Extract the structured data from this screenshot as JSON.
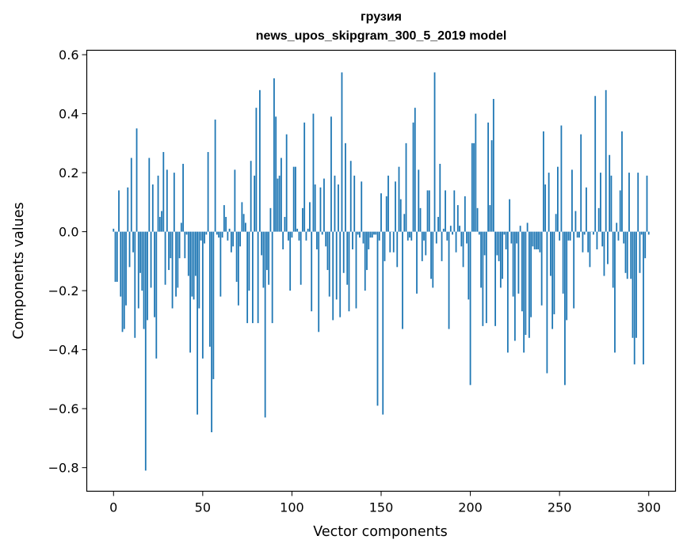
{
  "chart_data": {
    "type": "bar",
    "title": "грузия",
    "subtitle": "news_upos_skipgram_300_5_2019 model",
    "xlabel": "Vector components",
    "ylabel": "Components values",
    "xlim": [
      -15,
      315
    ],
    "ylim": [
      -0.88,
      0.615
    ],
    "xticks": [
      0,
      50,
      100,
      150,
      200,
      250,
      300
    ],
    "xtick_labels": [
      "0",
      "50",
      "100",
      "150",
      "200",
      "250",
      "300"
    ],
    "yticks": [
      -0.8,
      -0.6,
      -0.4,
      -0.2,
      0.0,
      0.2,
      0.4,
      0.6
    ],
    "ytick_labels": [
      "−0.8",
      "−0.6",
      "−0.4",
      "−0.2",
      "0.0",
      "0.2",
      "0.4",
      "0.6"
    ],
    "grid": false,
    "bar_color": "#1f77b4",
    "values": [
      0.01,
      -0.17,
      -0.17,
      0.14,
      -0.22,
      -0.34,
      -0.33,
      -0.25,
      0.15,
      -0.12,
      0.25,
      -0.07,
      -0.36,
      0.35,
      -0.26,
      -0.14,
      -0.2,
      -0.33,
      -0.81,
      -0.3,
      0.25,
      -0.19,
      0.16,
      -0.29,
      -0.43,
      0.19,
      0.05,
      0.07,
      0.27,
      -0.18,
      0.21,
      -0.13,
      -0.09,
      -0.26,
      0.2,
      -0.22,
      -0.19,
      -0.09,
      0.03,
      0.23,
      -0.09,
      -0.01,
      -0.15,
      -0.41,
      -0.22,
      -0.23,
      -0.15,
      -0.62,
      -0.26,
      -0.03,
      -0.43,
      -0.04,
      -0.01,
      0.27,
      -0.39,
      -0.68,
      -0.5,
      0.38,
      -0.01,
      -0.02,
      -0.22,
      -0.02,
      0.09,
      0.05,
      -0.03,
      0.01,
      -0.07,
      -0.05,
      0.21,
      -0.17,
      -0.25,
      -0.05,
      0.1,
      0.06,
      0.03,
      -0.31,
      -0.2,
      0.24,
      -0.31,
      0.19,
      0.42,
      -0.31,
      0.48,
      -0.08,
      -0.19,
      -0.63,
      -0.13,
      -0.18,
      0.08,
      -0.31,
      0.52,
      0.39,
      0.18,
      0.19,
      0.25,
      -0.06,
      0.05,
      0.33,
      -0.03,
      -0.2,
      -0.02,
      0.22,
      0.22,
      0.01,
      -0.03,
      -0.18,
      0.08,
      0.37,
      -0.03,
      0.01,
      0.1,
      -0.27,
      0.4,
      0.16,
      -0.06,
      -0.34,
      0.15,
      -0.01,
      0.18,
      -0.05,
      -0.13,
      -0.22,
      0.39,
      -0.3,
      0.19,
      -0.23,
      0.16,
      -0.29,
      0.54,
      -0.14,
      0.3,
      -0.18,
      -0.27,
      0.24,
      -0.06,
      0.19,
      -0.26,
      -0.01,
      -0.02,
      0.17,
      -0.04,
      -0.2,
      -0.13,
      -0.06,
      -0.02,
      -0.02,
      -0.01,
      -0.01,
      -0.59,
      -0.03,
      0.13,
      -0.62,
      -0.1,
      0.12,
      0.19,
      -0.07,
      0.0,
      -0.07,
      0.17,
      -0.12,
      0.22,
      0.11,
      -0.33,
      0.06,
      0.3,
      -0.03,
      -0.02,
      -0.03,
      0.37,
      0.42,
      -0.21,
      0.21,
      0.08,
      -0.1,
      -0.03,
      -0.08,
      0.14,
      0.14,
      -0.16,
      -0.19,
      0.54,
      -0.04,
      0.05,
      0.23,
      -0.1,
      0.01,
      0.14,
      -0.03,
      -0.33,
      0.02,
      -0.01,
      0.14,
      -0.07,
      0.09,
      0.02,
      -0.05,
      -0.12,
      0.12,
      -0.04,
      -0.23,
      -0.52,
      0.3,
      0.3,
      0.4,
      0.08,
      -0.01,
      -0.19,
      -0.32,
      -0.08,
      -0.31,
      0.37,
      0.09,
      0.31,
      0.45,
      -0.32,
      -0.08,
      -0.1,
      -0.19,
      -0.16,
      -0.01,
      -0.06,
      -0.41,
      0.11,
      -0.04,
      -0.22,
      -0.37,
      -0.04,
      -0.21,
      0.02,
      -0.27,
      -0.41,
      -0.35,
      0.03,
      -0.36,
      -0.29,
      -0.05,
      -0.06,
      -0.06,
      -0.06,
      -0.07,
      -0.25,
      0.34,
      0.16,
      -0.48,
      0.2,
      -0.15,
      -0.33,
      -0.28,
      0.06,
      0.22,
      -0.03,
      0.36,
      -0.21,
      -0.52,
      -0.3,
      -0.03,
      -0.03,
      0.21,
      -0.26,
      0.07,
      -0.02,
      -0.02,
      0.33,
      -0.07,
      -0.01,
      0.15,
      -0.07,
      -0.12,
      0.0,
      -0.01,
      0.46,
      -0.06,
      0.08,
      0.2,
      -0.05,
      -0.15,
      0.48,
      -0.11,
      0.26,
      0.19,
      -0.19,
      -0.41,
      0.03,
      -0.03,
      0.14,
      0.34,
      -0.04,
      -0.14,
      -0.16,
      0.2,
      -0.16,
      -0.36,
      -0.45,
      -0.36,
      0.2,
      -0.14,
      -0.01,
      -0.45,
      -0.09,
      0.19,
      -0.01
    ]
  }
}
